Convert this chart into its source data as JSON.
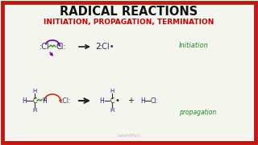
{
  "title": "RADICAL REACTIONS",
  "subtitle": "INITIATION, PROPAGATION, TERMINATION",
  "title_color": "#111111",
  "subtitle_color": "#cc0000",
  "bg_color": "#f5f5f0",
  "border_color": "#cc1111",
  "watermark": "Leah4Sci",
  "initiation_label": "Initiation",
  "propagation_label": "propagation",
  "label_color": "#228B22",
  "bond_color": "#333333",
  "H_color": "#1a1a8c",
  "Cl_color": "#333355",
  "C_color": "#222222",
  "curly1_color": "#6600aa",
  "curly2_color": "#cc2200",
  "arrow_color": "#222222"
}
